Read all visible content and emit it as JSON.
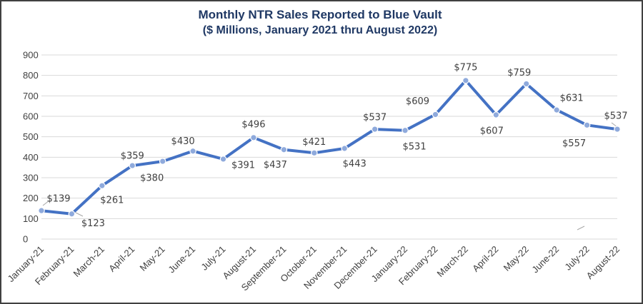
{
  "chart_data": {
    "type": "line",
    "title": "Monthly  NTR Sales Reported to Blue Vault",
    "subtitle": "($ Millions, January 2021 thru August 2022)",
    "categories": [
      "January-21",
      "February-21",
      "March-21",
      "April-21",
      "May-21",
      "June-21",
      "July-21",
      "August-21",
      "September-21",
      "October-21",
      "November-21",
      "December-21",
      "January-22",
      "February-22",
      "March-22",
      "April-22",
      "May-22",
      "June-22",
      "July-22",
      "August-22"
    ],
    "series": [
      {
        "values": [
          139,
          123,
          261,
          359,
          380,
          430,
          391,
          496,
          437,
          421,
          443,
          537,
          531,
          609,
          775,
          607,
          759,
          631,
          557,
          537
        ],
        "data_labels": [
          "$139",
          "$123",
          "$261",
          "$359",
          "$380",
          "$430",
          "$391",
          "$496",
          "$437",
          "$421",
          "$443",
          "$537",
          "$531",
          "$609",
          "$775",
          "$607",
          "$759",
          "$631",
          "$557",
          "$537"
        ]
      }
    ],
    "ylim": [
      0,
      900
    ],
    "yticks": [
      "0",
      "100",
      "200",
      "300",
      "400",
      "500",
      "600",
      "700",
      "800",
      "900"
    ],
    "grid": true,
    "legend": "none",
    "colors": {
      "line": "#4472c4",
      "marker": "#8faadc",
      "grid": "#d9d9d9",
      "title": "#1f3864"
    }
  }
}
